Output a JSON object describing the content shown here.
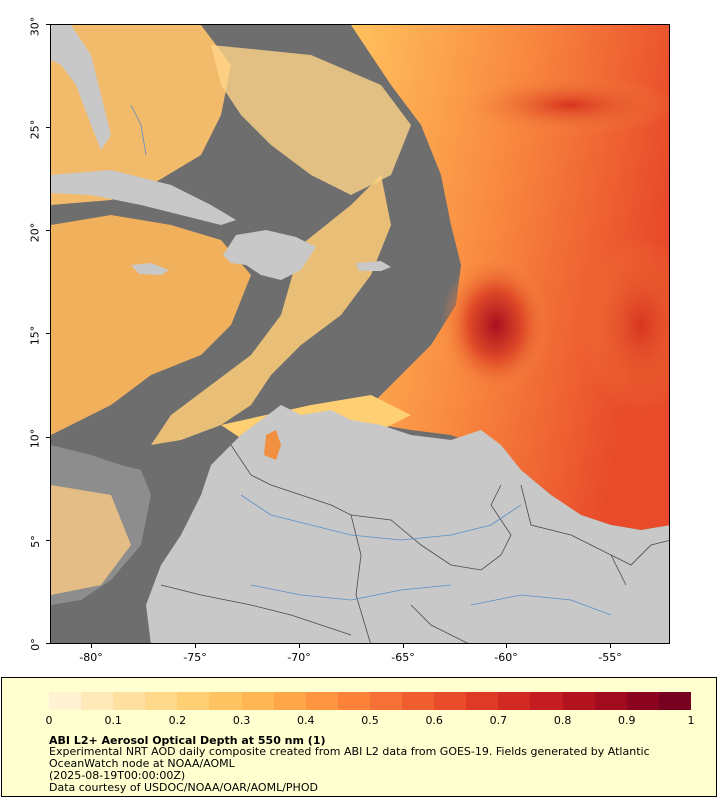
{
  "map": {
    "lat_ticks": [
      {
        "label": "30°",
        "lat": 30
      },
      {
        "label": "25°",
        "lat": 25
      },
      {
        "label": "20°",
        "lat": 20
      },
      {
        "label": "15°",
        "lat": 15
      },
      {
        "label": "10°",
        "lat": 10
      },
      {
        "label": "5°",
        "lat": 5
      },
      {
        "label": "0°",
        "lat": 0
      }
    ],
    "lon_ticks": [
      {
        "label": "-80°",
        "lon": -80
      },
      {
        "label": "-75°",
        "lon": -75
      },
      {
        "label": "-70°",
        "lon": -70
      },
      {
        "label": "-65°",
        "lon": -65
      },
      {
        "label": "-60°",
        "lon": -60
      },
      {
        "label": "-55°",
        "lon": -55
      }
    ],
    "colors": {
      "ocean_nodata": "#6e6e6e",
      "land": "#c8c8c8",
      "border": "#4a4a4a",
      "river": "#5a8fc8",
      "panel_bg": "#ffffcf"
    }
  },
  "legend": {
    "colorbar_colors": [
      "#fff3d4",
      "#ffe9b8",
      "#ffe0a0",
      "#ffd889",
      "#ffcf74",
      "#ffc461",
      "#ffb653",
      "#ffa648",
      "#ff9540",
      "#fc823a",
      "#f77035",
      "#f05e30",
      "#e84c2b",
      "#de3a26",
      "#d22a22",
      "#c41c20",
      "#b3121f",
      "#a00b20",
      "#8b0521",
      "#76001f"
    ],
    "tick_labels": [
      "0",
      "0.1",
      "0.2",
      "0.3",
      "0.4",
      "0.5",
      "0.6",
      "0.7",
      "0.8",
      "0.9",
      "1"
    ],
    "title": "ABI L2+ Aerosol Optical Depth at 550 nm (1)",
    "line1": "Experimental NRT AOD daily composite created from ABI L2 data from GOES-19. Fields generated by Atlantic OceanWatch node at NOAA/AOML",
    "line2": "(2025-08-19T00:00:00Z)",
    "line3": "Data courtesy of USDOC/NOAA/OAR/AOML/PHOD"
  }
}
